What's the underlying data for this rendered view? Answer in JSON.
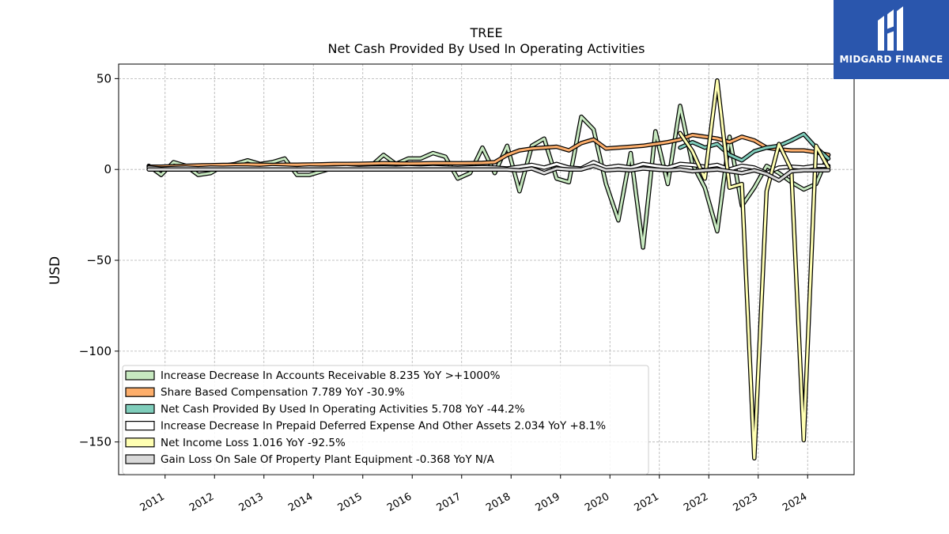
{
  "chart_data": {
    "type": "line",
    "title": "TREE",
    "subtitle": "Net Cash Provided By Used In Operating Activities",
    "ylabel": "USD",
    "xlabel": "",
    "ylim": [
      -168,
      58
    ],
    "xlim": [
      2010.06,
      2024.94
    ],
    "yticks": [
      50,
      0,
      -50,
      -100,
      -150
    ],
    "ytick_labels": [
      "50",
      "0",
      "−50",
      "−100",
      "−150"
    ],
    "xticks": [
      2011,
      2012,
      2013,
      2014,
      2015,
      2016,
      2017,
      2018,
      2019,
      2020,
      2021,
      2022,
      2023,
      2024
    ],
    "xtick_labels": [
      "2011",
      "2012",
      "2013",
      "2014",
      "2015",
      "2016",
      "2017",
      "2018",
      "2019",
      "2020",
      "2021",
      "2022",
      "2023",
      "2024"
    ],
    "grid": true,
    "legend_position": "lower-left",
    "series": [
      {
        "name": "Increase Decrease In Accounts Receivable  8.235 YoY >+1000%",
        "color": "#c7e9c0",
        "points": [
          [
            2010.67,
            2
          ],
          [
            2010.92,
            -3
          ],
          [
            2011.17,
            4
          ],
          [
            2011.42,
            2
          ],
          [
            2011.67,
            -3
          ],
          [
            2011.92,
            -2
          ],
          [
            2012.17,
            2
          ],
          [
            2012.42,
            3
          ],
          [
            2012.67,
            5
          ],
          [
            2012.92,
            3
          ],
          [
            2013.17,
            4
          ],
          [
            2013.42,
            6
          ],
          [
            2013.67,
            -3
          ],
          [
            2013.92,
            -3
          ],
          [
            2014.17,
            -1
          ],
          [
            2014.42,
            1
          ],
          [
            2014.67,
            2
          ],
          [
            2014.92,
            0
          ],
          [
            2015.17,
            2
          ],
          [
            2015.42,
            8
          ],
          [
            2015.67,
            3
          ],
          [
            2015.92,
            6
          ],
          [
            2016.17,
            6
          ],
          [
            2016.42,
            9
          ],
          [
            2016.67,
            7
          ],
          [
            2016.92,
            -5
          ],
          [
            2017.17,
            -2
          ],
          [
            2017.42,
            12
          ],
          [
            2017.67,
            -2
          ],
          [
            2017.92,
            13
          ],
          [
            2018.17,
            -12
          ],
          [
            2018.42,
            13
          ],
          [
            2018.67,
            17
          ],
          [
            2018.92,
            -5
          ],
          [
            2019.17,
            -7
          ],
          [
            2019.42,
            29
          ],
          [
            2019.67,
            22
          ],
          [
            2019.92,
            -8
          ],
          [
            2020.17,
            -28
          ],
          [
            2020.42,
            9
          ],
          [
            2020.67,
            -43
          ],
          [
            2020.92,
            21
          ],
          [
            2021.17,
            -8
          ],
          [
            2021.42,
            35
          ],
          [
            2021.67,
            3
          ],
          [
            2021.92,
            -10
          ],
          [
            2022.17,
            -34
          ],
          [
            2022.42,
            18
          ],
          [
            2022.67,
            -20
          ],
          [
            2022.92,
            -10
          ],
          [
            2023.17,
            2
          ],
          [
            2023.42,
            -2
          ],
          [
            2023.67,
            -7
          ],
          [
            2023.92,
            -11
          ],
          [
            2024.17,
            -8
          ],
          [
            2024.42,
            8
          ]
        ]
      },
      {
        "name": "Share Based Compensation  7.789 YoY -30.9%",
        "color": "#fdae6b",
        "points": [
          [
            2010.67,
            1.5
          ],
          [
            2010.92,
            1.5
          ],
          [
            2011.17,
            1.8
          ],
          [
            2011.42,
            2
          ],
          [
            2011.67,
            2.2
          ],
          [
            2011.92,
            2.3
          ],
          [
            2012.17,
            2.5
          ],
          [
            2012.42,
            2.5
          ],
          [
            2012.67,
            2.7
          ],
          [
            2012.92,
            2.6
          ],
          [
            2013.17,
            2.5
          ],
          [
            2013.42,
            2.6
          ],
          [
            2013.67,
            2.6
          ],
          [
            2013.92,
            2.7
          ],
          [
            2014.17,
            2.8
          ],
          [
            2014.42,
            3
          ],
          [
            2014.67,
            3
          ],
          [
            2014.92,
            3.1
          ],
          [
            2015.17,
            3.2
          ],
          [
            2015.42,
            3.5
          ],
          [
            2015.67,
            3.3
          ],
          [
            2015.92,
            3.2
          ],
          [
            2016.17,
            3.3
          ],
          [
            2016.42,
            3.5
          ],
          [
            2016.67,
            3.5
          ],
          [
            2016.92,
            3.4
          ],
          [
            2017.17,
            3.5
          ],
          [
            2017.42,
            3.6
          ],
          [
            2017.67,
            4
          ],
          [
            2017.92,
            8
          ],
          [
            2018.17,
            10.5
          ],
          [
            2018.42,
            11.5
          ],
          [
            2018.67,
            12
          ],
          [
            2018.92,
            12.5
          ],
          [
            2019.17,
            10.5
          ],
          [
            2019.42,
            14.5
          ],
          [
            2019.67,
            16.5
          ],
          [
            2019.92,
            11.5
          ],
          [
            2020.17,
            12
          ],
          [
            2020.42,
            12.5
          ],
          [
            2020.67,
            13
          ],
          [
            2020.92,
            14
          ],
          [
            2021.17,
            15
          ],
          [
            2021.42,
            16.5
          ],
          [
            2021.67,
            19
          ],
          [
            2021.92,
            18
          ],
          [
            2022.17,
            17
          ],
          [
            2022.42,
            15
          ],
          [
            2022.67,
            18
          ],
          [
            2022.92,
            16
          ],
          [
            2023.17,
            12
          ],
          [
            2023.42,
            11
          ],
          [
            2023.67,
            10.5
          ],
          [
            2023.92,
            10.5
          ],
          [
            2024.17,
            9.5
          ],
          [
            2024.42,
            8
          ]
        ]
      },
      {
        "name": "Net Cash Provided By Used In Operating Activities  5.708 YoY -44.2%",
        "color": "#7fcdbb",
        "points": [
          [
            2021.42,
            12
          ],
          [
            2021.67,
            15
          ],
          [
            2021.92,
            12
          ],
          [
            2022.17,
            14
          ],
          [
            2022.42,
            8
          ],
          [
            2022.67,
            5
          ],
          [
            2022.92,
            10
          ],
          [
            2023.17,
            12
          ],
          [
            2023.42,
            13
          ],
          [
            2023.67,
            16
          ],
          [
            2023.92,
            19.5
          ],
          [
            2024.17,
            12
          ],
          [
            2024.42,
            6
          ]
        ]
      },
      {
        "name": "Increase Decrease In Prepaid Deferred Expense And Other Assets  2.034 YoY +8.1%",
        "color": "#ffffff",
        "points": [
          [
            2010.67,
            1
          ],
          [
            2010.92,
            0.5
          ],
          [
            2011.17,
            0.8
          ],
          [
            2011.42,
            1
          ],
          [
            2011.67,
            0.7
          ],
          [
            2011.92,
            1
          ],
          [
            2012.17,
            0.9
          ],
          [
            2012.42,
            1.1
          ],
          [
            2012.67,
            1
          ],
          [
            2012.92,
            0.8
          ],
          [
            2013.17,
            1.2
          ],
          [
            2013.42,
            1
          ],
          [
            2013.67,
            0.7
          ],
          [
            2013.92,
            1.1
          ],
          [
            2014.17,
            0.9
          ],
          [
            2014.42,
            1
          ],
          [
            2014.67,
            1.2
          ],
          [
            2014.92,
            0.8
          ],
          [
            2015.17,
            1
          ],
          [
            2015.42,
            1.1
          ],
          [
            2015.67,
            0.9
          ],
          [
            2015.92,
            1.2
          ],
          [
            2016.17,
            1
          ],
          [
            2016.42,
            1.3
          ],
          [
            2016.67,
            1
          ],
          [
            2016.92,
            0.8
          ],
          [
            2017.17,
            1.1
          ],
          [
            2017.42,
            1.2
          ],
          [
            2017.67,
            1
          ],
          [
            2017.92,
            0.5
          ],
          [
            2018.17,
            1.5
          ],
          [
            2018.42,
            2.5
          ],
          [
            2018.67,
            1
          ],
          [
            2018.92,
            3
          ],
          [
            2019.17,
            1
          ],
          [
            2019.42,
            0.5
          ],
          [
            2019.67,
            4
          ],
          [
            2019.92,
            1
          ],
          [
            2020.17,
            2
          ],
          [
            2020.42,
            1
          ],
          [
            2020.67,
            3
          ],
          [
            2020.92,
            2
          ],
          [
            2021.17,
            1
          ],
          [
            2021.42,
            3
          ],
          [
            2021.67,
            2.5
          ],
          [
            2021.92,
            1.5
          ],
          [
            2022.17,
            2.5
          ],
          [
            2022.42,
            0
          ],
          [
            2022.67,
            2
          ],
          [
            2022.92,
            1
          ],
          [
            2023.17,
            -2
          ],
          [
            2023.42,
            1
          ],
          [
            2023.67,
            1.5
          ],
          [
            2023.92,
            1
          ],
          [
            2024.17,
            2
          ],
          [
            2024.42,
            2
          ]
        ]
      },
      {
        "name": "Net Income Loss  1.016 YoY -92.5%",
        "color": "#ffffb2",
        "points": [
          [
            2021.42,
            20
          ],
          [
            2021.67,
            10
          ],
          [
            2021.92,
            -5
          ],
          [
            2022.17,
            49
          ],
          [
            2022.42,
            -10
          ],
          [
            2022.67,
            -8
          ],
          [
            2022.92,
            -159
          ],
          [
            2023.17,
            -12
          ],
          [
            2023.42,
            14
          ],
          [
            2023.67,
            0
          ],
          [
            2023.92,
            -149
          ],
          [
            2024.17,
            13
          ],
          [
            2024.42,
            1
          ]
        ]
      },
      {
        "name": "Gain Loss On Sale Of Property Plant Equipment  -0.368 YoY N/A",
        "color": "#d9d9d9",
        "points": [
          [
            2010.67,
            0
          ],
          [
            2010.92,
            0
          ],
          [
            2011.17,
            0
          ],
          [
            2011.42,
            0
          ],
          [
            2011.67,
            0
          ],
          [
            2011.92,
            0
          ],
          [
            2012.17,
            0
          ],
          [
            2012.42,
            0
          ],
          [
            2012.67,
            0
          ],
          [
            2012.92,
            0
          ],
          [
            2013.17,
            0
          ],
          [
            2013.42,
            0
          ],
          [
            2013.67,
            0
          ],
          [
            2013.92,
            0
          ],
          [
            2014.17,
            0
          ],
          [
            2014.42,
            0
          ],
          [
            2014.67,
            0
          ],
          [
            2014.92,
            0
          ],
          [
            2015.17,
            0
          ],
          [
            2015.42,
            0
          ],
          [
            2015.67,
            0
          ],
          [
            2015.92,
            0
          ],
          [
            2016.17,
            0
          ],
          [
            2016.42,
            0
          ],
          [
            2016.67,
            0
          ],
          [
            2016.92,
            0
          ],
          [
            2017.17,
            0
          ],
          [
            2017.42,
            0
          ],
          [
            2017.67,
            0
          ],
          [
            2017.92,
            0
          ],
          [
            2018.17,
            -0.5
          ],
          [
            2018.42,
            0.5
          ],
          [
            2018.67,
            -2
          ],
          [
            2018.92,
            0.5
          ],
          [
            2019.17,
            0
          ],
          [
            2019.42,
            0
          ],
          [
            2019.67,
            2
          ],
          [
            2019.92,
            -0.5
          ],
          [
            2020.17,
            0
          ],
          [
            2020.42,
            -0.5
          ],
          [
            2020.67,
            0.5
          ],
          [
            2020.92,
            0
          ],
          [
            2021.17,
            -0.5
          ],
          [
            2021.42,
            0
          ],
          [
            2021.67,
            -1
          ],
          [
            2021.92,
            -0.5
          ],
          [
            2022.17,
            0
          ],
          [
            2022.42,
            -1
          ],
          [
            2022.67,
            -2
          ],
          [
            2022.92,
            -0.5
          ],
          [
            2023.17,
            -2.5
          ],
          [
            2023.42,
            -6
          ],
          [
            2023.67,
            -1
          ],
          [
            2023.92,
            -0.5
          ],
          [
            2024.17,
            -0.5
          ],
          [
            2024.42,
            -0.4
          ]
        ]
      }
    ]
  },
  "watermark": {
    "brand": "MIDGARD FINANCE",
    "color": "#2a56ad"
  }
}
